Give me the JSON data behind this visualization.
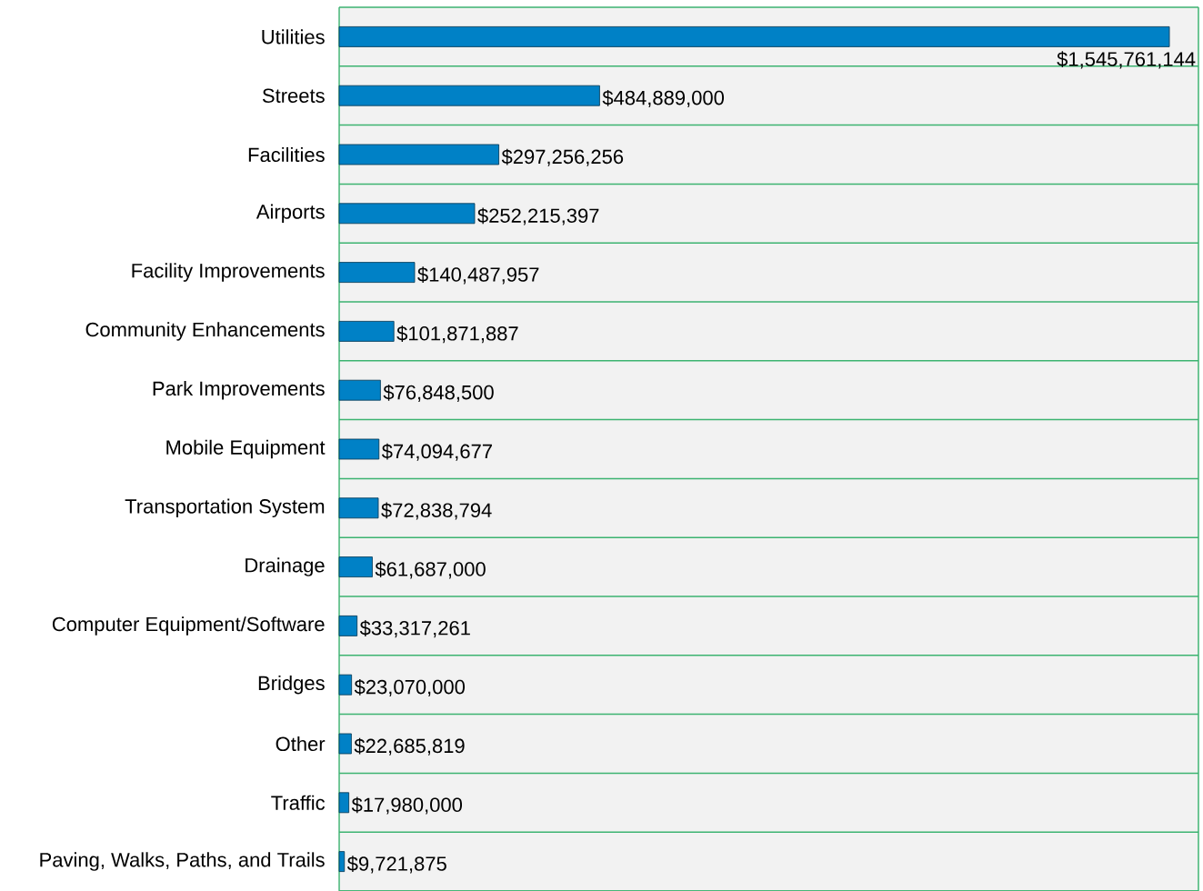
{
  "chart_data": {
    "type": "bar",
    "orientation": "horizontal",
    "categories": [
      "Utilities",
      "Streets",
      "Facilities",
      "Airports",
      "Facility Improvements",
      "Community Enhancements",
      "Park Improvements",
      "Mobile Equipment",
      "Transportation System",
      "Drainage",
      "Computer Equipment/Software",
      "Bridges",
      "Other",
      "Traffic",
      "Paving, Walks, Paths, and Trails"
    ],
    "values": [
      1545761144,
      484889000,
      297256256,
      252215397,
      140487957,
      101871887,
      76848500,
      74094677,
      72838794,
      61687000,
      33317261,
      23070000,
      22685819,
      17980000,
      9721875
    ],
    "value_labels": [
      "$1,545,761,144",
      "$484,889,000",
      "$297,256,256",
      "$252,215,397",
      "$140,487,957",
      "$101,871,887",
      "$76,848,500",
      "$74,094,677",
      "$72,838,794",
      "$61,687,000",
      "$33,317,261",
      "$23,070,000",
      "$22,685,819",
      "$17,980,000",
      "$9,721,875"
    ],
    "color": "#0081c6",
    "grid": "y",
    "tick_labels": "y"
  }
}
